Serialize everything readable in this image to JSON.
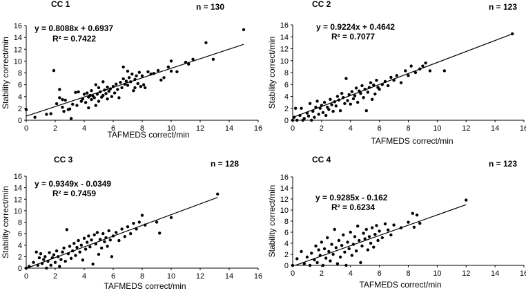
{
  "chart_data": [
    {
      "type": "scatter",
      "title": "CC 1",
      "n_label": "n = 130",
      "equation": "y = 0.8088x + 0.6937",
      "r2": "R² = 0.7422",
      "xlabel": "TAFMEDS correct/min",
      "ylabel": "Stability correct/min",
      "xlim": [
        0,
        16
      ],
      "ylim": [
        0,
        16
      ],
      "xticks": [
        0,
        2,
        4,
        6,
        8,
        10,
        12,
        14,
        16
      ],
      "yticks": [
        0,
        2,
        4,
        6,
        8,
        10,
        12,
        14,
        16
      ],
      "trendline": {
        "slope": 0.8088,
        "intercept": 0.6937,
        "x_range": [
          0,
          15
        ]
      },
      "points": [
        [
          0,
          1.8
        ],
        [
          0.6,
          0.5
        ],
        [
          1.4,
          1
        ],
        [
          1.7,
          1.1
        ],
        [
          1.9,
          8.4
        ],
        [
          2.1,
          2.8
        ],
        [
          2.3,
          3.8
        ],
        [
          2.3,
          5.2
        ],
        [
          2.5,
          3.5
        ],
        [
          2.5,
          2.2
        ],
        [
          2.6,
          1.5
        ],
        [
          2.7,
          3.4
        ],
        [
          2.9,
          1.8
        ],
        [
          3,
          1.9
        ],
        [
          3.1,
          0.3
        ],
        [
          3.2,
          2.7
        ],
        [
          3.4,
          4.7
        ],
        [
          3.5,
          2.5
        ],
        [
          3.6,
          4.8
        ],
        [
          3.8,
          3.2
        ],
        [
          3.9,
          3.6
        ],
        [
          4,
          4.4
        ],
        [
          4.1,
          3
        ],
        [
          4.2,
          4.6
        ],
        [
          4.3,
          3.9
        ],
        [
          4.3,
          2.1
        ],
        [
          4.4,
          4.2
        ],
        [
          4.5,
          3.5
        ],
        [
          4.5,
          5
        ],
        [
          4.6,
          4.1
        ],
        [
          4.7,
          3.8
        ],
        [
          4.8,
          6
        ],
        [
          4.8,
          2.5
        ],
        [
          4.9,
          4.4
        ],
        [
          5,
          3.2
        ],
        [
          5,
          5.5
        ],
        [
          5.1,
          4.8
        ],
        [
          5.2,
          3.9
        ],
        [
          5.3,
          6.5
        ],
        [
          5.3,
          4.2
        ],
        [
          5.4,
          5.1
        ],
        [
          5.5,
          4.5
        ],
        [
          5.6,
          5.6
        ],
        [
          5.6,
          3.6
        ],
        [
          5.7,
          4.9
        ],
        [
          5.8,
          5.3
        ],
        [
          5.9,
          4
        ],
        [
          6,
          5.7
        ],
        [
          6.1,
          4.6
        ],
        [
          6.2,
          6.1
        ],
        [
          6.3,
          5.2
        ],
        [
          6.4,
          3.8
        ],
        [
          6.5,
          6.4
        ],
        [
          6.6,
          5.5
        ],
        [
          6.7,
          7
        ],
        [
          6.7,
          9
        ],
        [
          6.8,
          6.1
        ],
        [
          6.9,
          6.6
        ],
        [
          7,
          5.9
        ],
        [
          7,
          8.3
        ],
        [
          7.1,
          7.2
        ],
        [
          7.2,
          6.5
        ],
        [
          7.3,
          7.8
        ],
        [
          7.4,
          5
        ],
        [
          7.5,
          6.9
        ],
        [
          7.5,
          5.5
        ],
        [
          7.6,
          7.5
        ],
        [
          7.7,
          6.2
        ],
        [
          7.8,
          8.1
        ],
        [
          7.9,
          5.7
        ],
        [
          8,
          7.5
        ],
        [
          8.1,
          6
        ],
        [
          8.2,
          5.5
        ],
        [
          8.4,
          8.2
        ],
        [
          8.6,
          7.8
        ],
        [
          8.8,
          7.9
        ],
        [
          9.1,
          8.4
        ],
        [
          9.3,
          6.8
        ],
        [
          9.5,
          7.2
        ],
        [
          9.8,
          9
        ],
        [
          10,
          10
        ],
        [
          10,
          8.3
        ],
        [
          10.4,
          8.2
        ],
        [
          11,
          9.8
        ],
        [
          11.2,
          9.5
        ],
        [
          11.5,
          10.3
        ],
        [
          12.4,
          13.1
        ],
        [
          12.9,
          10.3
        ],
        [
          15,
          15.3
        ]
      ]
    },
    {
      "type": "scatter",
      "title": "CC 2",
      "n_label": "n = 123",
      "equation": "y = 0.9224x + 0.4642",
      "r2": "R² = 0.7077",
      "xlabel": "TAFMEDS correct/min",
      "ylabel": "Stability correct/min",
      "xlim": [
        0,
        16
      ],
      "ylim": [
        0,
        16
      ],
      "xticks": [
        0,
        2,
        4,
        6,
        8,
        10,
        12,
        14,
        16
      ],
      "yticks": [
        0,
        2,
        4,
        6,
        8,
        10,
        12,
        14,
        16
      ],
      "trendline": {
        "slope": 0.9224,
        "intercept": 0.4642,
        "x_range": [
          0,
          15.2
        ]
      },
      "points": [
        [
          0,
          0
        ],
        [
          0.1,
          0.5
        ],
        [
          0.2,
          2
        ],
        [
          0.3,
          0
        ],
        [
          0.5,
          0.8
        ],
        [
          0.6,
          2
        ],
        [
          0.7,
          0
        ],
        [
          0.8,
          0.3
        ],
        [
          1,
          1.2
        ],
        [
          1.1,
          0.7
        ],
        [
          1.2,
          2.8
        ],
        [
          1.3,
          0
        ],
        [
          1.4,
          1.5
        ],
        [
          1.5,
          0.5
        ],
        [
          1.6,
          2.2
        ],
        [
          1.7,
          3.2
        ],
        [
          1.8,
          1
        ],
        [
          1.9,
          2
        ],
        [
          2,
          2.5
        ],
        [
          2.1,
          1.3
        ],
        [
          2.2,
          3
        ],
        [
          2.3,
          0.8
        ],
        [
          2.4,
          2.2
        ],
        [
          2.5,
          1.8
        ],
        [
          2.6,
          3.5
        ],
        [
          2.7,
          2.6
        ],
        [
          2.8,
          1.5
        ],
        [
          2.9,
          3.1
        ],
        [
          3,
          2.4
        ],
        [
          3.1,
          4
        ],
        [
          3.2,
          3.4
        ],
        [
          3.3,
          1.6
        ],
        [
          3.4,
          4.5
        ],
        [
          3.5,
          3.8
        ],
        [
          3.6,
          2.8
        ],
        [
          3.7,
          7
        ],
        [
          3.8,
          3.3
        ],
        [
          3.9,
          4.3
        ],
        [
          4,
          2.7
        ],
        [
          4.1,
          4.8
        ],
        [
          4.2,
          3.6
        ],
        [
          4.3,
          4.1
        ],
        [
          4.4,
          5.4
        ],
        [
          4.5,
          3
        ],
        [
          4.6,
          4.9
        ],
        [
          4.7,
          4.5
        ],
        [
          4.8,
          5.8
        ],
        [
          4.9,
          3.8
        ],
        [
          5,
          5.2
        ],
        [
          5.1,
          1.6
        ],
        [
          5.2,
          4.7
        ],
        [
          5.3,
          5.5
        ],
        [
          5.4,
          6.3
        ],
        [
          5.5,
          3.5
        ],
        [
          5.6,
          5.9
        ],
        [
          5.7,
          4.4
        ],
        [
          5.8,
          6.7
        ],
        [
          5.9,
          5.5
        ],
        [
          6,
          5.2
        ],
        [
          6.2,
          6
        ],
        [
          6.4,
          6.5
        ],
        [
          6.6,
          5.8
        ],
        [
          6.8,
          7.2
        ],
        [
          7,
          6.7
        ],
        [
          7.2,
          7.5
        ],
        [
          7.5,
          6.3
        ],
        [
          7.8,
          8.3
        ],
        [
          8,
          7.5
        ],
        [
          8.2,
          9.1
        ],
        [
          8.5,
          8
        ],
        [
          8.8,
          8.6
        ],
        [
          9,
          9.1
        ],
        [
          9.2,
          9.6
        ],
        [
          9.5,
          8.3
        ],
        [
          10.5,
          8.3
        ],
        [
          15.2,
          14.5
        ]
      ]
    },
    {
      "type": "scatter",
      "title": "CC 3",
      "n_label": "n = 128",
      "equation": "y = 0.9349x - 0.0349",
      "r2": "R² = 0.7459",
      "xlabel": "TAFMEDS correct/min",
      "ylabel": "Stability correct/min",
      "xlim": [
        0,
        16
      ],
      "ylim": [
        0,
        16
      ],
      "xticks": [
        0,
        2,
        4,
        6,
        8,
        10,
        12,
        14,
        16
      ],
      "yticks": [
        0,
        2,
        4,
        6,
        8,
        10,
        12,
        14,
        16
      ],
      "trendline": {
        "slope": 0.9349,
        "intercept": -0.0349,
        "x_range": [
          0,
          13.2
        ]
      },
      "points": [
        [
          0,
          0
        ],
        [
          0.2,
          0.3
        ],
        [
          0.5,
          1
        ],
        [
          0.7,
          2.8
        ],
        [
          0.8,
          0.5
        ],
        [
          0.9,
          1.8
        ],
        [
          1,
          2.5
        ],
        [
          1.1,
          0.8
        ],
        [
          1.2,
          1.5
        ],
        [
          1.3,
          2
        ],
        [
          1.4,
          0
        ],
        [
          1.5,
          1.2
        ],
        [
          1.6,
          2.7
        ],
        [
          1.7,
          0.5
        ],
        [
          1.8,
          1.8
        ],
        [
          1.9,
          2.3
        ],
        [
          2,
          1
        ],
        [
          2.1,
          3
        ],
        [
          2.2,
          2
        ],
        [
          2.3,
          0.3
        ],
        [
          2.4,
          1.5
        ],
        [
          2.5,
          2.8
        ],
        [
          2.6,
          3.5
        ],
        [
          2.7,
          1.2
        ],
        [
          2.8,
          6.7
        ],
        [
          2.9,
          2.5
        ],
        [
          3,
          3.8
        ],
        [
          3.1,
          1.7
        ],
        [
          3.2,
          3
        ],
        [
          3.3,
          4.3
        ],
        [
          3.4,
          2.2
        ],
        [
          3.5,
          3.6
        ],
        [
          3.6,
          4.8
        ],
        [
          3.7,
          2.8
        ],
        [
          3.8,
          4
        ],
        [
          3.9,
          1.4
        ],
        [
          4,
          5.2
        ],
        [
          4.1,
          3.3
        ],
        [
          4.2,
          4.5
        ],
        [
          4.3,
          5.6
        ],
        [
          4.4,
          3.7
        ],
        [
          4.5,
          4.9
        ],
        [
          4.6,
          0.7
        ],
        [
          4.7,
          5.8
        ],
        [
          4.8,
          4.2
        ],
        [
          4.9,
          6.2
        ],
        [
          5,
          2.4
        ],
        [
          5.1,
          5
        ],
        [
          5.2,
          3.5
        ],
        [
          5.3,
          6
        ],
        [
          5.4,
          4.6
        ],
        [
          5.5,
          5.3
        ],
        [
          5.6,
          3.8
        ],
        [
          5.7,
          6.5
        ],
        [
          5.8,
          4.9
        ],
        [
          5.9,
          2
        ],
        [
          6,
          5.6
        ],
        [
          6.2,
          6.2
        ],
        [
          6.4,
          4.8
        ],
        [
          6.6,
          6.8
        ],
        [
          6.8,
          5.5
        ],
        [
          7,
          7.2
        ],
        [
          7.2,
          6
        ],
        [
          7.4,
          7.8
        ],
        [
          7.6,
          6.8
        ],
        [
          7.8,
          8
        ],
        [
          8,
          9.2
        ],
        [
          8.2,
          7.5
        ],
        [
          9,
          8
        ],
        [
          9.2,
          6.1
        ],
        [
          10,
          8.8
        ],
        [
          13.2,
          12.9
        ]
      ]
    },
    {
      "type": "scatter",
      "title": "CC 4",
      "n_label": "n = 123",
      "equation": "y = 0.9285x - 0.162",
      "r2": "R² = 0.6234",
      "xlabel": "TAFMEDS correct/min",
      "ylabel": "Stability correct/min",
      "xlim": [
        0,
        16
      ],
      "ylim": [
        0,
        16
      ],
      "xticks": [
        0,
        2,
        4,
        6,
        8,
        10,
        12,
        14,
        16
      ],
      "yticks": [
        0,
        2,
        4,
        6,
        8,
        10,
        12,
        14,
        16
      ],
      "trendline": {
        "slope": 0.9285,
        "intercept": -0.162,
        "x_range": [
          0,
          12
        ]
      },
      "points": [
        [
          0,
          0
        ],
        [
          0.3,
          1.2
        ],
        [
          0.6,
          2.5
        ],
        [
          0.8,
          0.3
        ],
        [
          1,
          1.5
        ],
        [
          1.2,
          0
        ],
        [
          1.3,
          2.2
        ],
        [
          1.5,
          1
        ],
        [
          1.6,
          3.5
        ],
        [
          1.7,
          0.5
        ],
        [
          1.8,
          2.8
        ],
        [
          1.9,
          1.8
        ],
        [
          2,
          4.2
        ],
        [
          2.1,
          0
        ],
        [
          2.2,
          3
        ],
        [
          2.3,
          1.3
        ],
        [
          2.4,
          5
        ],
        [
          2.5,
          2.5
        ],
        [
          2.6,
          0.8
        ],
        [
          2.7,
          3.8
        ],
        [
          2.8,
          2
        ],
        [
          2.9,
          6.5
        ],
        [
          3,
          3.2
        ],
        [
          3.1,
          0.3
        ],
        [
          3.2,
          4.5
        ],
        [
          3.3,
          1.5
        ],
        [
          3.4,
          3.6
        ],
        [
          3.5,
          5.5
        ],
        [
          3.6,
          2.4
        ],
        [
          3.7,
          0
        ],
        [
          3.8,
          4.2
        ],
        [
          3.9,
          3
        ],
        [
          4,
          6
        ],
        [
          4.1,
          1.8
        ],
        [
          4.2,
          3.8
        ],
        [
          4.3,
          5.2
        ],
        [
          4.4,
          2.6
        ],
        [
          4.5,
          7.1
        ],
        [
          4.6,
          4.5
        ],
        [
          4.7,
          0.5
        ],
        [
          4.8,
          3.5
        ],
        [
          4.9,
          5.8
        ],
        [
          5,
          4.8
        ],
        [
          5.1,
          6.5
        ],
        [
          5.2,
          2.8
        ],
        [
          5.3,
          5.2
        ],
        [
          5.4,
          4
        ],
        [
          5.5,
          6.8
        ],
        [
          5.6,
          3.3
        ],
        [
          5.7,
          5.6
        ],
        [
          5.8,
          7.2
        ],
        [
          5.9,
          4.5
        ],
        [
          6,
          6.2
        ],
        [
          6.2,
          5
        ],
        [
          6.4,
          7.5
        ],
        [
          6.6,
          6.4
        ],
        [
          6.8,
          5.5
        ],
        [
          7,
          7.3
        ],
        [
          7.5,
          6.8
        ],
        [
          8,
          7.8
        ],
        [
          8.3,
          9.4
        ],
        [
          8.4,
          6.9
        ],
        [
          8.6,
          9.1
        ],
        [
          8.8,
          7.6
        ],
        [
          12,
          11.8
        ]
      ]
    }
  ]
}
